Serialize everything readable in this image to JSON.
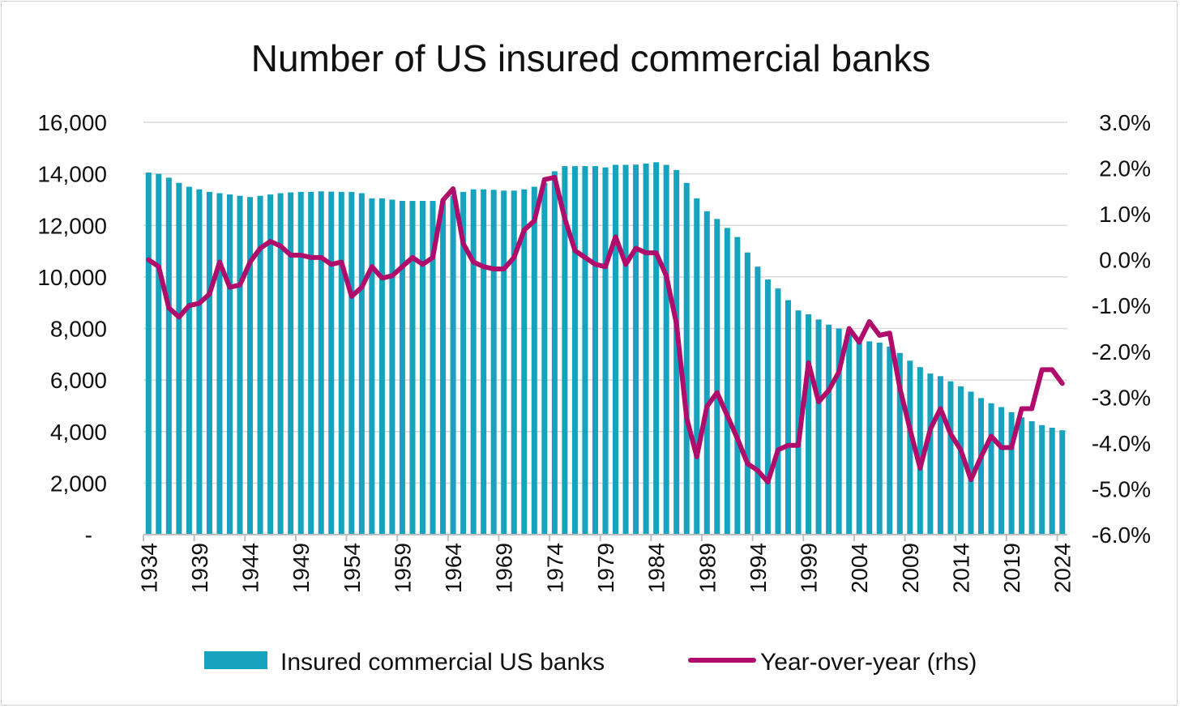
{
  "chart_data": {
    "type": "bar",
    "title": "Number of US insured commercial banks",
    "xlabel": "",
    "ylabel": "",
    "ylim": [
      0,
      16000
    ],
    "y2lim": [
      -6.0,
      3.0
    ],
    "yticks": [
      "-",
      "2,000",
      "4,000",
      "6,000",
      "8,000",
      "10,000",
      "12,000",
      "14,000",
      "16,000"
    ],
    "y2ticks": [
      "-6.0%",
      "-5.0%",
      "-4.0%",
      "-3.0%",
      "-2.0%",
      "-1.0%",
      "0.0%",
      "1.0%",
      "2.0%",
      "3.0%"
    ],
    "xticks": [
      "1934",
      "1939",
      "1944",
      "1949",
      "1954",
      "1959",
      "1964",
      "1969",
      "1974",
      "1979",
      "1984",
      "1989",
      "1994",
      "1999",
      "2004",
      "2009",
      "2014",
      "2019",
      "2024"
    ],
    "colors": {
      "bars": "#17A3BE",
      "line": "#B00C6B",
      "grid": "#D9D9D9"
    },
    "years": [
      1934,
      1935,
      1936,
      1937,
      1938,
      1939,
      1940,
      1941,
      1942,
      1943,
      1944,
      1945,
      1946,
      1947,
      1948,
      1949,
      1950,
      1951,
      1952,
      1953,
      1954,
      1955,
      1956,
      1957,
      1958,
      1959,
      1960,
      1961,
      1962,
      1963,
      1964,
      1965,
      1966,
      1967,
      1968,
      1969,
      1970,
      1971,
      1972,
      1973,
      1974,
      1975,
      1976,
      1977,
      1978,
      1979,
      1980,
      1981,
      1982,
      1983,
      1984,
      1985,
      1986,
      1987,
      1988,
      1989,
      1990,
      1991,
      1992,
      1993,
      1994,
      1995,
      1996,
      1997,
      1998,
      1999,
      2000,
      2001,
      2002,
      2003,
      2004,
      2005,
      2006,
      2007,
      2008,
      2009,
      2010,
      2011,
      2012,
      2013,
      2014,
      2015,
      2016,
      2017,
      2018,
      2019,
      2020,
      2021,
      2022,
      2023,
      2024
    ],
    "series": [
      {
        "name": "Insured commercial US banks",
        "axis": "left",
        "type": "bar",
        "values": [
          14050,
          14000,
          13850,
          13650,
          13500,
          13400,
          13300,
          13250,
          13200,
          13150,
          13100,
          13150,
          13200,
          13250,
          13280,
          13300,
          13300,
          13320,
          13310,
          13300,
          13300,
          13250,
          13050,
          13050,
          13000,
          12950,
          12950,
          12950,
          12950,
          12950,
          13150,
          13300,
          13400,
          13400,
          13380,
          13350,
          13350,
          13400,
          13500,
          13650,
          14100,
          14300,
          14300,
          14300,
          14300,
          14250,
          14350,
          14350,
          14360,
          14400,
          14450,
          14350,
          14150,
          13650,
          13050,
          12550,
          12250,
          11900,
          11550,
          10950,
          10400,
          9900,
          9550,
          9100,
          8700,
          8550,
          8350,
          8150,
          8000,
          7850,
          7650,
          7500,
          7450,
          7300,
          7050,
          6750,
          6500,
          6250,
          6150,
          5950,
          5750,
          5550,
          5300,
          5100,
          4950,
          4750,
          4550,
          4400,
          4250,
          4150,
          4050
        ]
      },
      {
        "name": "Year-over-year (rhs)",
        "axis": "right",
        "type": "line",
        "values": [
          0.0,
          -0.15,
          -1.05,
          -1.25,
          -1.0,
          -0.95,
          -0.75,
          -0.05,
          -0.6,
          -0.55,
          -0.05,
          0.25,
          0.4,
          0.3,
          0.1,
          0.1,
          0.05,
          0.05,
          -0.1,
          -0.05,
          -0.8,
          -0.6,
          -0.15,
          -0.4,
          -0.35,
          -0.15,
          0.05,
          -0.1,
          0.05,
          1.3,
          1.55,
          0.35,
          -0.05,
          -0.15,
          -0.2,
          -0.2,
          0.05,
          0.65,
          0.85,
          1.75,
          1.8,
          0.9,
          0.2,
          0.05,
          -0.1,
          -0.15,
          0.5,
          -0.1,
          0.25,
          0.15,
          0.15,
          -0.35,
          -1.4,
          -3.45,
          -4.3,
          -3.2,
          -2.9,
          -3.4,
          -3.9,
          -4.45,
          -4.6,
          -4.85,
          -4.15,
          -4.05,
          -4.05,
          -2.25,
          -3.1,
          -2.85,
          -2.45,
          -1.5,
          -1.8,
          -1.35,
          -1.65,
          -1.6,
          -2.8,
          -3.7,
          -4.55,
          -3.7,
          -3.25,
          -3.8,
          -4.15,
          -4.8,
          -4.3,
          -3.85,
          -4.1,
          -4.1,
          -3.25,
          -3.25,
          -2.4,
          -2.4,
          -2.7
        ]
      }
    ],
    "legend": {
      "position": "bottom",
      "entries": [
        "Insured commercial US banks",
        "Year-over-year (rhs)"
      ]
    }
  }
}
